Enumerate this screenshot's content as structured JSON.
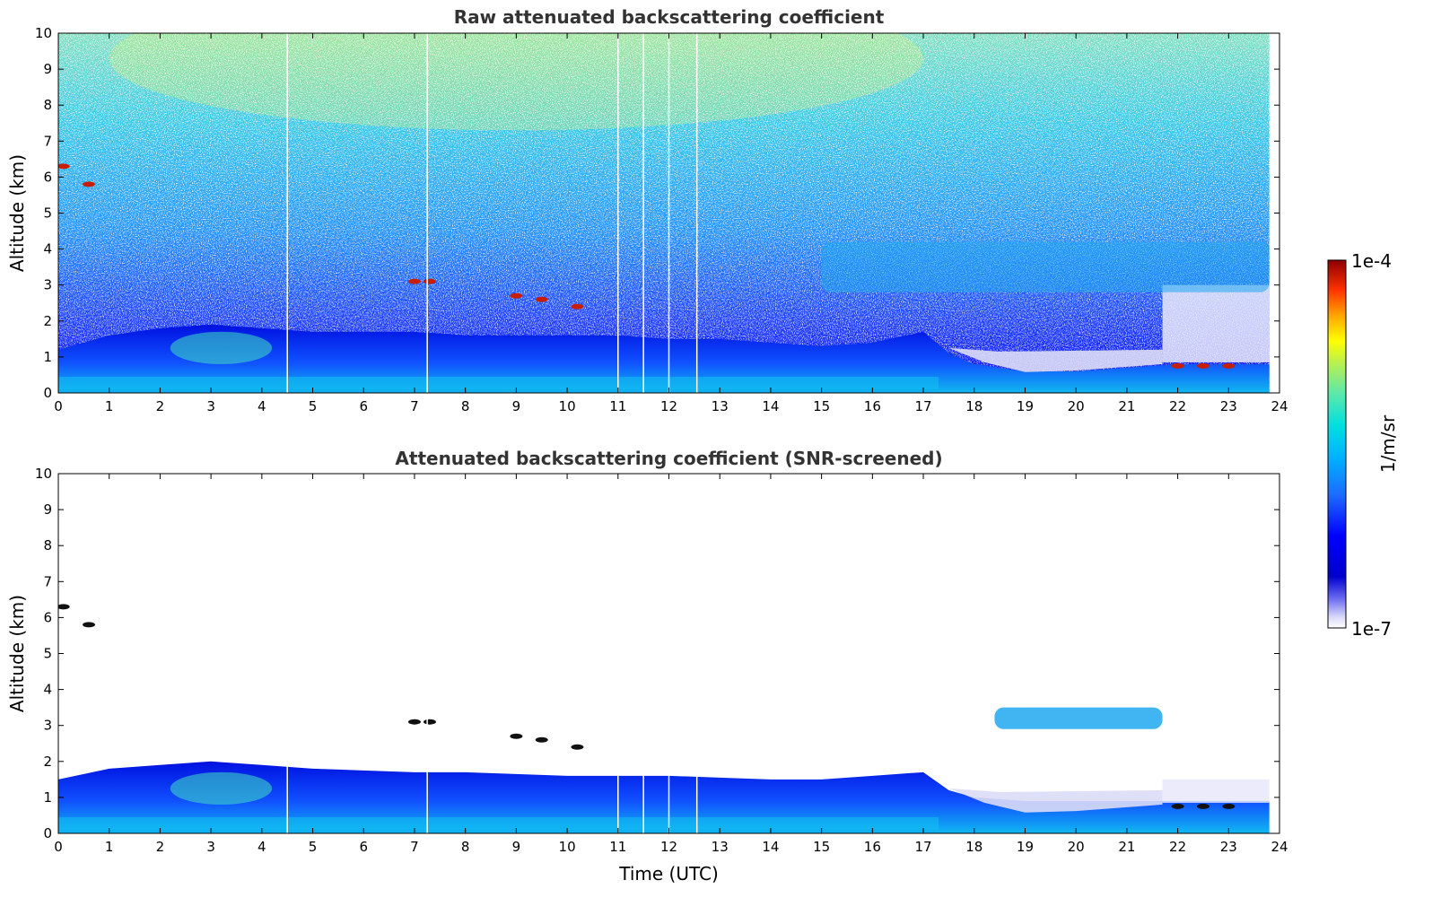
{
  "colors": {
    "colormap": [
      "#ffffff",
      "#0000cd",
      "#0000ff",
      "#1e5aff",
      "#00a0ff",
      "#00e5e5",
      "#5be8b0",
      "#a8f060",
      "#ffff00",
      "#ffa500",
      "#ff3300",
      "#8b0000"
    ]
  },
  "chart_data": [
    {
      "type": "heatmap",
      "title": "Raw attenuated backscattering coefficient",
      "xlabel": "",
      "ylabel": "Altitude (km)",
      "xlim": [
        0,
        24
      ],
      "ylim": [
        0,
        10
      ],
      "x_ticks": [
        "0",
        "1",
        "2",
        "3",
        "4",
        "5",
        "6",
        "7",
        "8",
        "9",
        "10",
        "11",
        "12",
        "13",
        "14",
        "15",
        "16",
        "17",
        "18",
        "19",
        "20",
        "21",
        "22",
        "23",
        "24"
      ],
      "y_ticks": [
        "0",
        "1",
        "2",
        "3",
        "4",
        "5",
        "6",
        "7",
        "8",
        "9",
        "10"
      ],
      "data_end_time": 23.8,
      "boundary_layer_top": [
        [
          0,
          1.2
        ],
        [
          1,
          1.6
        ],
        [
          2,
          1.8
        ],
        [
          3,
          1.9
        ],
        [
          4,
          1.8
        ],
        [
          5,
          1.7
        ],
        [
          6,
          1.7
        ],
        [
          7,
          1.7
        ],
        [
          8,
          1.6
        ],
        [
          9,
          1.6
        ],
        [
          10,
          1.6
        ],
        [
          11,
          1.6
        ],
        [
          12,
          1.5
        ],
        [
          13,
          1.5
        ],
        [
          14,
          1.4
        ],
        [
          15,
          1.3
        ],
        [
          16,
          1.4
        ],
        [
          17,
          1.7
        ],
        [
          17.5,
          1.1
        ],
        [
          18,
          0.8
        ],
        [
          19,
          0.6
        ],
        [
          20,
          0.6
        ],
        [
          21,
          0.7
        ],
        [
          22,
          0.8
        ],
        [
          23,
          0.8
        ],
        [
          23.8,
          0.8
        ]
      ],
      "elevated_aerosol_layer": {
        "x_start": 15.0,
        "x_end": 23.8,
        "alt_low": 2.8,
        "alt_high": 4.2
      },
      "cloud_patches": [
        [
          0.1,
          6.3
        ],
        [
          0.6,
          5.8
        ],
        [
          7.0,
          3.1
        ],
        [
          7.3,
          3.1
        ],
        [
          9.0,
          2.7
        ],
        [
          9.5,
          2.6
        ],
        [
          10.2,
          2.4
        ],
        [
          22.0,
          0.75
        ],
        [
          22.5,
          0.75
        ],
        [
          23.0,
          0.75
        ]
      ],
      "gap_times": [
        4.5,
        7.25,
        11.0,
        11.5,
        12.0,
        12.55
      ]
    },
    {
      "type": "heatmap",
      "title": "Attenuated backscattering coefficient (SNR-screened)",
      "xlabel": "Time (UTC)",
      "ylabel": "Altitude (km)",
      "xlim": [
        0,
        24
      ],
      "ylim": [
        0,
        10
      ],
      "x_ticks": [
        "0",
        "1",
        "2",
        "3",
        "4",
        "5",
        "6",
        "7",
        "8",
        "9",
        "10",
        "11",
        "12",
        "13",
        "14",
        "15",
        "16",
        "17",
        "18",
        "19",
        "20",
        "21",
        "22",
        "23",
        "24"
      ],
      "y_ticks": [
        "0",
        "1",
        "2",
        "3",
        "4",
        "5",
        "6",
        "7",
        "8",
        "9",
        "10"
      ],
      "data_end_time": 23.8,
      "boundary_layer_top": [
        [
          0,
          1.5
        ],
        [
          1,
          1.8
        ],
        [
          2,
          1.9
        ],
        [
          3,
          2.0
        ],
        [
          4,
          1.9
        ],
        [
          5,
          1.8
        ],
        [
          6,
          1.75
        ],
        [
          7,
          1.7
        ],
        [
          8,
          1.7
        ],
        [
          9,
          1.65
        ],
        [
          10,
          1.6
        ],
        [
          11,
          1.6
        ],
        [
          12,
          1.6
        ],
        [
          13,
          1.55
        ],
        [
          14,
          1.5
        ],
        [
          15,
          1.5
        ],
        [
          16,
          1.6
        ],
        [
          17,
          1.7
        ],
        [
          17.5,
          1.2
        ],
        [
          18,
          1.0
        ],
        [
          19,
          0.9
        ],
        [
          20,
          0.9
        ],
        [
          21,
          0.9
        ],
        [
          22,
          0.9
        ],
        [
          23,
          0.9
        ],
        [
          23.8,
          0.9
        ]
      ],
      "elevated_aerosol_layer": {
        "x_start": 18.4,
        "x_end": 21.7,
        "alt_low": 2.9,
        "alt_high": 3.5
      },
      "cloud_patches": [
        [
          0.1,
          6.3
        ],
        [
          0.6,
          5.8
        ],
        [
          7.0,
          3.1
        ],
        [
          7.3,
          3.1
        ],
        [
          9.0,
          2.7
        ],
        [
          9.5,
          2.6
        ],
        [
          10.2,
          2.4
        ],
        [
          22.0,
          0.75
        ],
        [
          22.5,
          0.75
        ],
        [
          23.0,
          0.75
        ]
      ],
      "gap_times": [
        4.5,
        7.25,
        11.0,
        11.5,
        12.0,
        12.55
      ]
    }
  ],
  "colorbar": {
    "max_label": "1e-4",
    "min_label": "1e-7",
    "unit_label": "1/m/sr"
  }
}
